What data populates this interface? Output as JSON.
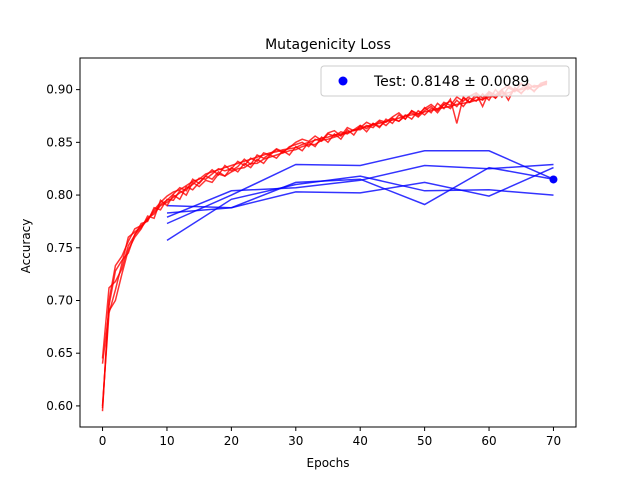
{
  "chart_data": {
    "type": "line",
    "title": "Mutagenicity Loss",
    "xlabel": "Epochs",
    "ylabel": "Accuracy",
    "xlim": [
      -3.5,
      73.5
    ],
    "ylim": [
      0.58,
      0.93
    ],
    "xticks": [
      0,
      10,
      20,
      30,
      40,
      50,
      60,
      70
    ],
    "yticks": [
      0.6,
      0.65,
      0.7,
      0.75,
      0.8,
      0.85,
      0.9
    ],
    "grid": false,
    "legend": {
      "position": "top-right",
      "label": "Test: 0.8148 ± 0.0089",
      "marker_color": "#0000ff"
    },
    "test_point": {
      "x": 70,
      "y": 0.8148,
      "color": "#0000ff"
    },
    "colors": {
      "train": "#ff0000",
      "val": "#0000ff"
    },
    "train_series": [
      {
        "x": [
          0,
          1,
          2,
          3,
          4,
          5,
          6,
          7,
          8,
          9,
          10,
          11,
          12,
          13,
          14,
          15,
          16,
          17,
          18,
          19,
          20,
          21,
          22,
          23,
          24,
          25,
          26,
          27,
          28,
          29,
          30,
          31,
          32,
          33,
          34,
          35,
          36,
          37,
          38,
          39,
          40,
          41,
          42,
          43,
          44,
          45,
          46,
          47,
          48,
          49,
          50,
          51,
          52,
          53,
          54,
          55,
          56,
          57,
          58,
          59,
          60,
          61,
          62,
          63,
          64,
          65,
          66,
          67,
          68,
          69
        ],
        "y": [
          0.595,
          0.7,
          0.733,
          0.742,
          0.756,
          0.768,
          0.771,
          0.776,
          0.786,
          0.793,
          0.799,
          0.803,
          0.805,
          0.809,
          0.813,
          0.815,
          0.82,
          0.822,
          0.824,
          0.826,
          0.828,
          0.83,
          0.832,
          0.834,
          0.836,
          0.838,
          0.84,
          0.841,
          0.843,
          0.844,
          0.845,
          0.848,
          0.85,
          0.852,
          0.854,
          0.855,
          0.857,
          0.858,
          0.86,
          0.861,
          0.863,
          0.865,
          0.867,
          0.868,
          0.87,
          0.871,
          0.873,
          0.875,
          0.876,
          0.877,
          0.879,
          0.88,
          0.882,
          0.883,
          0.884,
          0.886,
          0.887,
          0.888,
          0.89,
          0.891,
          0.893,
          0.894,
          0.896,
          0.897,
          0.899,
          0.9,
          0.902,
          0.903,
          0.904,
          0.906
        ]
      },
      {
        "x": [
          0,
          1,
          2,
          3,
          4,
          5,
          6,
          7,
          8,
          9,
          10,
          11,
          12,
          13,
          14,
          15,
          16,
          17,
          18,
          19,
          20,
          21,
          22,
          23,
          24,
          25,
          26,
          27,
          28,
          29,
          30,
          31,
          32,
          33,
          34,
          35,
          36,
          37,
          38,
          39,
          40,
          41,
          42,
          43,
          44,
          45,
          46,
          47,
          48,
          49,
          50,
          51,
          52,
          53,
          54,
          55,
          56,
          57,
          58,
          59,
          60,
          61,
          62,
          63,
          64,
          65,
          66,
          67,
          68,
          69
        ],
        "y": [
          0.6,
          0.688,
          0.71,
          0.735,
          0.76,
          0.765,
          0.77,
          0.778,
          0.782,
          0.79,
          0.793,
          0.798,
          0.802,
          0.806,
          0.81,
          0.816,
          0.815,
          0.82,
          0.825,
          0.823,
          0.825,
          0.832,
          0.828,
          0.835,
          0.832,
          0.84,
          0.838,
          0.843,
          0.84,
          0.846,
          0.848,
          0.85,
          0.846,
          0.853,
          0.851,
          0.858,
          0.856,
          0.86,
          0.858,
          0.862,
          0.866,
          0.863,
          0.868,
          0.865,
          0.87,
          0.873,
          0.87,
          0.875,
          0.878,
          0.874,
          0.88,
          0.884,
          0.878,
          0.886,
          0.889,
          0.884,
          0.892,
          0.888,
          0.893,
          0.89,
          0.896,
          0.892,
          0.898,
          0.894,
          0.9,
          0.897,
          0.902,
          0.899,
          0.904,
          0.905
        ]
      },
      {
        "x": [
          0,
          1,
          2,
          3,
          4,
          5,
          6,
          7,
          8,
          9,
          10,
          11,
          12,
          13,
          14,
          15,
          16,
          17,
          18,
          19,
          20,
          21,
          22,
          23,
          24,
          25,
          26,
          27,
          28,
          29,
          30,
          31,
          32,
          33,
          34,
          35,
          36,
          37,
          38,
          39,
          40,
          41,
          42,
          43,
          44,
          45,
          46,
          47,
          48,
          49,
          50,
          51,
          52,
          53,
          54,
          55,
          56,
          57,
          58,
          59,
          60,
          61,
          62,
          63,
          64,
          65,
          66,
          67,
          68,
          69
        ],
        "y": [
          0.64,
          0.69,
          0.7,
          0.725,
          0.748,
          0.76,
          0.768,
          0.78,
          0.778,
          0.795,
          0.79,
          0.8,
          0.796,
          0.808,
          0.805,
          0.812,
          0.818,
          0.815,
          0.822,
          0.818,
          0.826,
          0.822,
          0.83,
          0.826,
          0.834,
          0.83,
          0.838,
          0.835,
          0.842,
          0.838,
          0.846,
          0.842,
          0.85,
          0.846,
          0.855,
          0.85,
          0.858,
          0.853,
          0.862,
          0.857,
          0.866,
          0.86,
          0.868,
          0.864,
          0.872,
          0.868,
          0.876,
          0.872,
          0.88,
          0.875,
          0.883,
          0.878,
          0.887,
          0.882,
          0.891,
          0.868,
          0.893,
          0.888,
          0.896,
          0.884,
          0.898,
          0.892,
          0.9,
          0.89,
          0.902,
          0.896,
          0.904,
          0.898,
          0.906,
          0.908
        ]
      },
      {
        "x": [
          0,
          1,
          2,
          3,
          4,
          5,
          6,
          7,
          8,
          9,
          10,
          11,
          12,
          13,
          14,
          15,
          16,
          17,
          18,
          19,
          20,
          21,
          22,
          23,
          24,
          25,
          26,
          27,
          28,
          29,
          30,
          31,
          32,
          33,
          34,
          35,
          36,
          37,
          38,
          39,
          40,
          41,
          42,
          43,
          44,
          45,
          46,
          47,
          48,
          49,
          50,
          51,
          52,
          53,
          54,
          55,
          56,
          57,
          58,
          59,
          60,
          61,
          62,
          63,
          64,
          65,
          66,
          67,
          68,
          69
        ],
        "y": [
          0.645,
          0.712,
          0.718,
          0.73,
          0.752,
          0.762,
          0.773,
          0.775,
          0.788,
          0.786,
          0.796,
          0.795,
          0.804,
          0.8,
          0.812,
          0.808,
          0.814,
          0.812,
          0.82,
          0.818,
          0.822,
          0.825,
          0.826,
          0.83,
          0.83,
          0.834,
          0.836,
          0.838,
          0.84,
          0.842,
          0.843,
          0.846,
          0.848,
          0.848,
          0.852,
          0.853,
          0.855,
          0.857,
          0.859,
          0.862,
          0.862,
          0.866,
          0.864,
          0.87,
          0.866,
          0.872,
          0.87,
          0.876,
          0.872,
          0.88,
          0.876,
          0.882,
          0.88,
          0.886,
          0.882,
          0.89,
          0.884,
          0.892,
          0.889,
          0.896,
          0.89,
          0.9,
          0.893,
          0.902,
          0.898,
          0.906,
          0.9,
          0.904,
          0.903,
          0.907
        ]
      },
      {
        "x": [
          0,
          1,
          2,
          3,
          4,
          5,
          6,
          7,
          8,
          9,
          10,
          11,
          12,
          13,
          14,
          15,
          16,
          17,
          18,
          19,
          20,
          21,
          22,
          23,
          24,
          25,
          26,
          27,
          28,
          29,
          30,
          31,
          32,
          33,
          34,
          35,
          36,
          37,
          38,
          39,
          40,
          41,
          42,
          43,
          44,
          45,
          46,
          47,
          48,
          49,
          50,
          51,
          52,
          53,
          54,
          55,
          56,
          57,
          58,
          59,
          60,
          61,
          62,
          63,
          64,
          65,
          66,
          67,
          68,
          69
        ],
        "y": [
          0.598,
          0.695,
          0.728,
          0.738,
          0.745,
          0.763,
          0.769,
          0.777,
          0.784,
          0.791,
          0.795,
          0.801,
          0.807,
          0.804,
          0.815,
          0.811,
          0.818,
          0.824,
          0.819,
          0.828,
          0.823,
          0.827,
          0.834,
          0.829,
          0.838,
          0.835,
          0.839,
          0.844,
          0.841,
          0.845,
          0.85,
          0.853,
          0.851,
          0.856,
          0.852,
          0.859,
          0.861,
          0.856,
          0.864,
          0.861,
          0.864,
          0.869,
          0.866,
          0.871,
          0.869,
          0.874,
          0.878,
          0.872,
          0.88,
          0.877,
          0.882,
          0.886,
          0.881,
          0.888,
          0.885,
          0.893,
          0.889,
          0.894,
          0.897,
          0.892,
          0.898,
          0.895,
          0.9,
          0.904,
          0.899,
          0.901,
          0.906,
          0.902,
          0.905,
          0.908
        ]
      }
    ],
    "val_series": [
      {
        "x": [
          10,
          20,
          30,
          40,
          50,
          60,
          70
        ],
        "y": [
          0.757,
          0.796,
          0.81,
          0.818,
          0.804,
          0.805,
          0.8
        ]
      },
      {
        "x": [
          10,
          20,
          30,
          40,
          50,
          60,
          70
        ],
        "y": [
          0.773,
          0.8,
          0.829,
          0.828,
          0.842,
          0.842,
          0.815
        ]
      },
      {
        "x": [
          10,
          20,
          30,
          40,
          50,
          60,
          70
        ],
        "y": [
          0.779,
          0.804,
          0.807,
          0.814,
          0.828,
          0.825,
          0.829
        ]
      },
      {
        "x": [
          10,
          20,
          30,
          40,
          50,
          60,
          70
        ],
        "y": [
          0.783,
          0.788,
          0.803,
          0.802,
          0.812,
          0.799,
          0.826
        ]
      },
      {
        "x": [
          10,
          20,
          30,
          40,
          50,
          60,
          70
        ],
        "y": [
          0.79,
          0.788,
          0.812,
          0.815,
          0.791,
          0.826,
          0.815
        ]
      }
    ]
  }
}
